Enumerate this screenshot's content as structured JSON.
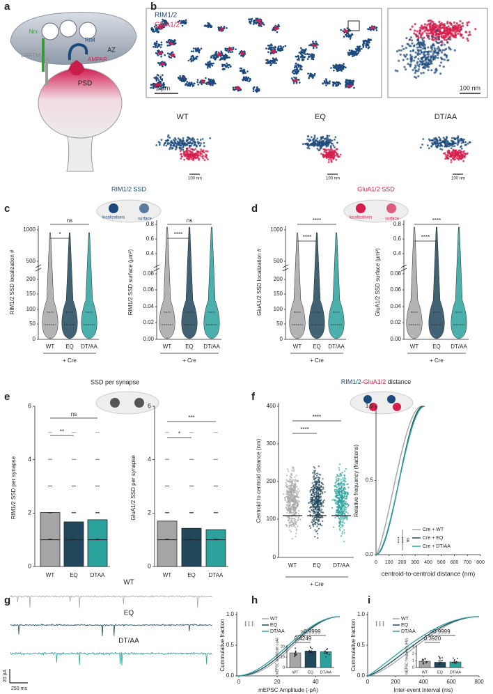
{
  "a": {
    "label": "a",
    "nrx": "Nrx",
    "rim": "RIM",
    "az": "AZ",
    "lrrtm": "LRRTM",
    "ampar": "AMPAR",
    "psd": "PSD"
  },
  "b": {
    "label": "b",
    "legend": [
      "RIM1/2",
      "GluA1/2"
    ],
    "scale_overview": "2 µm",
    "scale_zoom": "100 nm",
    "conditions": [
      "WT",
      "EQ",
      "DT/AA"
    ],
    "scale_conditions": [
      "100 nm",
      "100 nm",
      "100 nm"
    ]
  },
  "c": {
    "label": "c",
    "title": "RIM1/2 SSD",
    "schematic": [
      "localizations",
      "surface"
    ],
    "left": {
      "ylabel": "RIM1/2 SSD localization #",
      "yticks": [
        "1000",
        "500",
        "200",
        "150",
        "100",
        "50",
        "0"
      ],
      "categories": [
        "WT",
        "EQ",
        "DT/AA"
      ],
      "group": "+ Cre",
      "significance": [
        "ns",
        "*"
      ]
    },
    "right": {
      "ylabel": "RIM1/2 SSD surface (µm²)",
      "yticks": [
        "0.8",
        "0.6",
        "0.4",
        "0.08",
        "0.06",
        "0.04",
        "0.02",
        "0.00"
      ],
      "categories": [
        "WT",
        "EQ",
        "DT/AA"
      ],
      "group": "+ Cre",
      "significance": [
        "ns",
        "****"
      ]
    }
  },
  "d": {
    "label": "d",
    "title": "GluA1/2 SSD",
    "schematic": [
      "localizations",
      "surface"
    ],
    "left": {
      "ylabel": "GluA1/2 SSD localization #",
      "yticks": [
        "1000",
        "500",
        "200",
        "150",
        "100",
        "50",
        "0"
      ],
      "categories": [
        "WT",
        "EQ",
        "DT/AA"
      ],
      "group": "+ Cre",
      "significance": [
        "****",
        "****"
      ]
    },
    "right": {
      "ylabel": "GluA1/2 SSD surface (µm²)",
      "yticks": [
        "0.8",
        "0.6",
        "0.4",
        "0.08",
        "0.06",
        "0.04",
        "0.02",
        "0.00"
      ],
      "categories": [
        "WT",
        "EQ",
        "DT/AA"
      ],
      "group": "+ Cre",
      "significance": [
        "****",
        "****"
      ]
    }
  },
  "e": {
    "label": "e",
    "title": "SSD per synapse",
    "left": {
      "ylabel": "RIM1/2 SSD per synapse",
      "ylim": [
        0,
        6
      ],
      "yticks": [
        0,
        2,
        4,
        6
      ],
      "categories": [
        "WT",
        "EQ",
        "DTAA"
      ],
      "values": [
        2.02,
        1.67,
        1.75
      ],
      "significance": [
        "ns",
        "**"
      ]
    },
    "right": {
      "ylabel": "GluA1/2 SSD per synapse",
      "ylim": [
        0,
        6
      ],
      "yticks": [
        0,
        2,
        4,
        6
      ],
      "categories": [
        "WT",
        "EQ",
        "DTAA"
      ],
      "values": [
        1.7,
        1.43,
        1.38
      ],
      "significance": [
        "***",
        "*"
      ]
    }
  },
  "f": {
    "label": "f",
    "title": [
      "RIM1/2",
      "-",
      "GluA1/2",
      " distance"
    ],
    "left": {
      "ylabel": "Centroid to centroid distance (nm)",
      "yticks": [
        "400",
        "300",
        "200",
        "100",
        "0"
      ],
      "categories": [
        "WT",
        "EQ",
        "DT/AA"
      ],
      "group": "+ Cre",
      "significance": [
        "****",
        "****"
      ]
    },
    "right": {
      "ylabel": "Relative frequency (fractions)",
      "xlabel": "centroid-to-centroid distance (nm)",
      "yticks": [
        "1.0",
        "0.5",
        "0.0"
      ],
      "xticks": [
        "0",
        "100",
        "200",
        "300",
        "400",
        "500",
        "600",
        "700",
        "800"
      ],
      "legend": [
        "Cre + WT",
        "Cre + EQ",
        "Cre + DT/AA"
      ],
      "significance": [
        "****",
        "****",
        "ns"
      ]
    }
  },
  "g": {
    "label": "g",
    "traces": [
      "WT",
      "EQ",
      "DT/AA"
    ],
    "scale_y": "20 pA",
    "scale_x": "250 ms"
  },
  "h": {
    "label": "h",
    "ylabel": "Cummulative fraction",
    "xlabel": "mEPSC Amplitude (-pA)",
    "yticks": [
      "1.0",
      "0.5",
      "0.0"
    ],
    "xticks": [
      "0",
      "20",
      "40"
    ],
    "legend": [
      "WT",
      "EQ",
      "DT/AA"
    ],
    "significance": [
      "****",
      "****",
      "****"
    ],
    "inset": {
      "ylabel": "mEPSC amplitude (-pA)",
      "ylim": [
        0,
        20
      ],
      "yticks": [
        0,
        10,
        20
      ],
      "categories": [
        "WT",
        "EQ",
        "DT/AA"
      ],
      "values": [
        14,
        15.8,
        15.2
      ],
      "pvalues": [
        ">0.9999",
        "0.4249"
      ]
    }
  },
  "i": {
    "label": "i",
    "ylabel": "Cummulative fraction",
    "xlabel": "Inter-event Interval (ms)",
    "yticks": [
      "1.0",
      "0.5",
      "0.0"
    ],
    "xticks": [
      "0",
      "200",
      "400",
      "600",
      "800"
    ],
    "legend": [
      "WT",
      "EQ",
      "DT/AA"
    ],
    "significance": [
      "****",
      "****",
      "****"
    ],
    "inset": {
      "ylabel": "mEPSC frequency (Hz)",
      "ylim": [
        0,
        3
      ],
      "yticks": [
        0,
        1,
        2,
        3
      ],
      "categories": [
        "WT",
        "EQ",
        "DT/AA"
      ],
      "values": [
        0.9,
        0.75,
        0.8
      ],
      "pvalues": [
        ">0.9999",
        "0.3920"
      ]
    }
  }
}
